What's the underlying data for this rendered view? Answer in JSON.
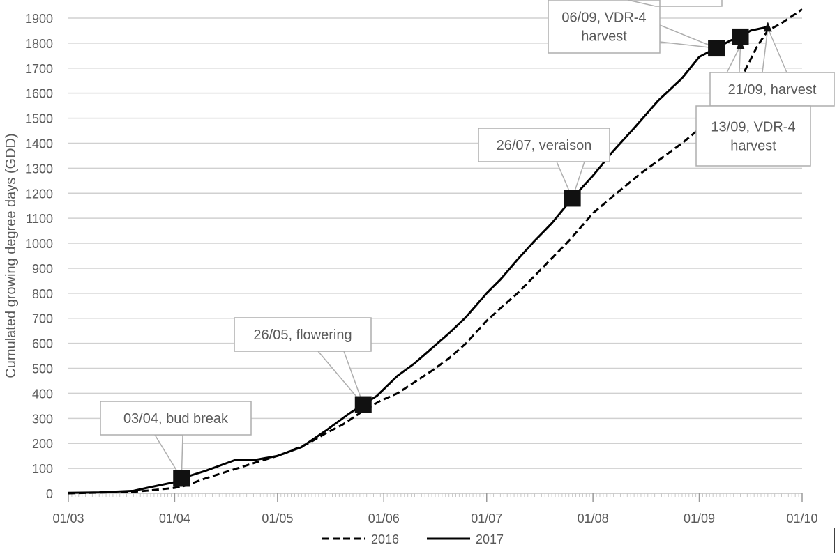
{
  "chart_data": {
    "type": "line",
    "title": "",
    "xlabel": "",
    "ylabel": "Cumulated growing degree days (GDD)",
    "ylim": [
      0,
      1900
    ],
    "y_ticks": [
      "0",
      "100",
      "200",
      "300",
      "400",
      "500",
      "600",
      "700",
      "800",
      "900",
      "1000",
      "1100",
      "1200",
      "1300",
      "1400",
      "1500",
      "1600",
      "1700",
      "1800",
      "1900"
    ],
    "xlim": [
      "2017-03-01",
      "2017-10-01"
    ],
    "x_ticks": [
      {
        "date": "2017-03-01",
        "label": "01/03"
      },
      {
        "date": "2017-04-01",
        "label": "01/04"
      },
      {
        "date": "2017-05-01",
        "label": "01/05"
      },
      {
        "date": "2017-06-01",
        "label": "01/06"
      },
      {
        "date": "2017-07-01",
        "label": "01/07"
      },
      {
        "date": "2017-08-01",
        "label": "01/08"
      },
      {
        "date": "2017-09-01",
        "label": "01/09"
      },
      {
        "date": "2017-10-01",
        "label": "01/10"
      }
    ],
    "grid": "horizontal",
    "legend": "bottom",
    "series": [
      {
        "name": "2016",
        "style": "dashed",
        "color": "#000000",
        "points": [
          [
            "2017-03-01",
            0
          ],
          [
            "2017-03-10",
            3
          ],
          [
            "2017-03-20",
            6
          ],
          [
            "2017-03-25",
            12
          ],
          [
            "2017-04-01",
            22
          ],
          [
            "2017-04-04",
            30
          ],
          [
            "2017-04-10",
            60
          ],
          [
            "2017-04-17",
            90
          ],
          [
            "2017-04-25",
            125
          ],
          [
            "2017-05-01",
            150
          ],
          [
            "2017-05-04",
            165
          ],
          [
            "2017-05-10",
            200
          ],
          [
            "2017-05-15",
            240
          ],
          [
            "2017-05-20",
            275
          ],
          [
            "2017-05-26",
            330
          ],
          [
            "2017-05-31",
            370
          ],
          [
            "2017-06-05",
            400
          ],
          [
            "2017-06-10",
            445
          ],
          [
            "2017-06-15",
            490
          ],
          [
            "2017-06-20",
            540
          ],
          [
            "2017-06-25",
            600
          ],
          [
            "2017-07-01",
            690
          ],
          [
            "2017-07-05",
            740
          ],
          [
            "2017-07-10",
            800
          ],
          [
            "2017-07-15",
            870
          ],
          [
            "2017-07-20",
            940
          ],
          [
            "2017-07-25",
            1010
          ],
          [
            "2017-08-01",
            1120
          ],
          [
            "2017-08-07",
            1190
          ],
          [
            "2017-08-15",
            1280
          ],
          [
            "2017-08-21",
            1340
          ],
          [
            "2017-08-27",
            1400
          ],
          [
            "2017-09-03",
            1480
          ],
          [
            "2017-09-08",
            1560
          ],
          [
            "2017-09-13",
            1655
          ],
          [
            "2017-09-18",
            1790
          ],
          [
            "2017-09-21",
            1850
          ],
          [
            "2017-09-25",
            1880
          ],
          [
            "2017-10-01",
            1935
          ]
        ]
      },
      {
        "name": "2017",
        "style": "solid",
        "color": "#000000",
        "points": [
          [
            "2017-03-01",
            2
          ],
          [
            "2017-03-10",
            4
          ],
          [
            "2017-03-20",
            10
          ],
          [
            "2017-03-25",
            25
          ],
          [
            "2017-04-01",
            45
          ],
          [
            "2017-04-03",
            60
          ],
          [
            "2017-04-10",
            90
          ],
          [
            "2017-04-17",
            125
          ],
          [
            "2017-04-19",
            135
          ],
          [
            "2017-04-25",
            135
          ],
          [
            "2017-05-01",
            150
          ],
          [
            "2017-05-08",
            185
          ],
          [
            "2017-05-15",
            250
          ],
          [
            "2017-05-22",
            320
          ],
          [
            "2017-05-26",
            355
          ],
          [
            "2017-05-30",
            390
          ],
          [
            "2017-06-05",
            470
          ],
          [
            "2017-06-10",
            520
          ],
          [
            "2017-06-15",
            580
          ],
          [
            "2017-06-20",
            640
          ],
          [
            "2017-06-25",
            705
          ],
          [
            "2017-07-01",
            800
          ],
          [
            "2017-07-05",
            855
          ],
          [
            "2017-07-10",
            935
          ],
          [
            "2017-07-15",
            1010
          ],
          [
            "2017-07-20",
            1080
          ],
          [
            "2017-07-26",
            1180
          ],
          [
            "2017-08-01",
            1270
          ],
          [
            "2017-08-07",
            1370
          ],
          [
            "2017-08-13",
            1460
          ],
          [
            "2017-08-20",
            1570
          ],
          [
            "2017-08-27",
            1660
          ],
          [
            "2017-09-01",
            1745
          ],
          [
            "2017-09-06",
            1780
          ],
          [
            "2017-09-10",
            1810
          ],
          [
            "2017-09-13",
            1825
          ],
          [
            "2017-09-16",
            1850
          ],
          [
            "2017-09-21",
            1865
          ]
        ]
      }
    ],
    "markers": [
      {
        "date": "2017-04-03",
        "value": 60,
        "shape": "square"
      },
      {
        "date": "2017-05-26",
        "value": 355,
        "shape": "square"
      },
      {
        "date": "2017-07-26",
        "value": 1180,
        "shape": "square"
      },
      {
        "date": "2017-09-06",
        "value": 1780,
        "shape": "square"
      },
      {
        "date": "2017-09-13",
        "value": 1825,
        "shape": "square"
      },
      {
        "date": "2017-09-13",
        "value": 1790,
        "shape": "triangle"
      },
      {
        "date": "2017-09-21",
        "value": 1860,
        "shape": "triangle"
      }
    ],
    "annotations": [
      {
        "lines": [
          "03/04, bud break"
        ],
        "point": [
          "2017-04-03",
          60
        ]
      },
      {
        "lines": [
          "26/05, flowering"
        ],
        "point": [
          "2017-05-26",
          355
        ]
      },
      {
        "lines": [
          "26/07, veraison"
        ],
        "point": [
          "2017-07-26",
          1180
        ]
      },
      {
        "lines": [
          "06/09, VDR-4",
          "harvest"
        ],
        "point": [
          "2017-09-06",
          1780
        ]
      },
      {
        "lines": [
          "21/09, harvest"
        ],
        "point": [
          "2017-09-21",
          1860
        ]
      },
      {
        "lines": [
          "13/09, VDR-4",
          "harvest"
        ],
        "point": [
          "2017-09-13",
          1790
        ]
      }
    ]
  }
}
